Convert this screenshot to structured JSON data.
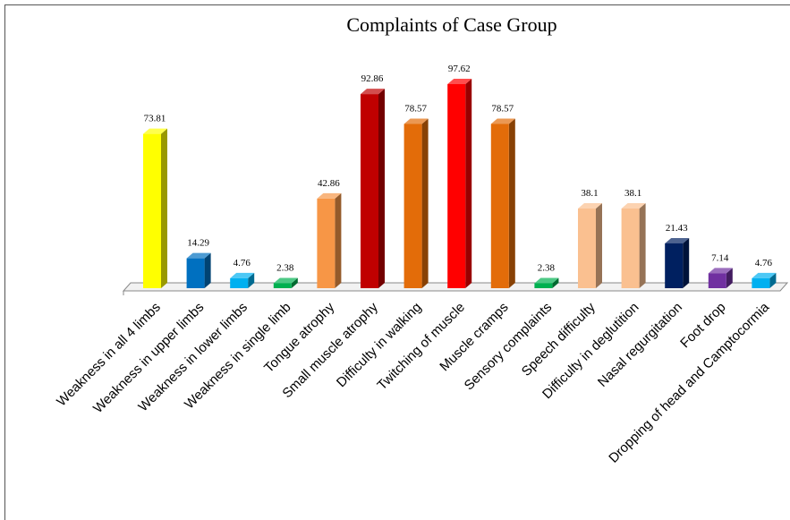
{
  "chart_data": {
    "type": "bar",
    "title": "Complaints of Case Group",
    "categories": [
      "Weakness in all 4 limbs",
      "Weakness in upper limbs",
      "Weakness in lower limbs",
      "Weakness in single limb",
      "Tongue atrophy",
      "Small muscle atrophy",
      "Difficulty in walking",
      "Twitching of muscle",
      "Muscle cramps",
      "Sensory complaints",
      "Speech difficulty",
      "Difficulty in deglutition",
      "Nasal regurgitation",
      "Foot drop",
      "Dropping of head and Camptocormia"
    ],
    "values": [
      73.81,
      14.29,
      4.76,
      2.38,
      42.86,
      92.86,
      78.57,
      97.62,
      78.57,
      2.38,
      38.1,
      38.1,
      21.43,
      7.14,
      4.76
    ],
    "colors": [
      "#ffff00",
      "#0070c0",
      "#00b0f0",
      "#00b050",
      "#f79646",
      "#c00000",
      "#e36c09",
      "#ff0000",
      "#e36c09",
      "#00b050",
      "#fac090",
      "#fac090",
      "#002060",
      "#7030a0",
      "#00b0f0"
    ]
  }
}
